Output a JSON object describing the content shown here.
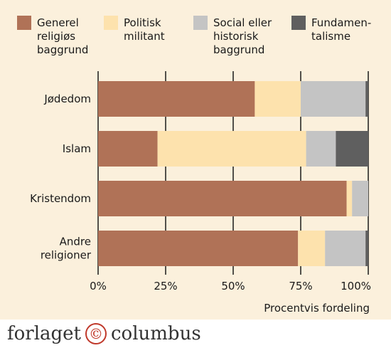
{
  "colors": {
    "panel_background": "#fbf0dc",
    "grid": "#1a1a1a",
    "series": [
      "#b07257",
      "#fde2ad",
      "#c4c4c4",
      "#5f5f5f"
    ]
  },
  "publisher": {
    "name_part1": "forlaget",
    "symbol": "©",
    "name_part2": "columbus"
  },
  "chart_data": {
    "type": "bar",
    "orientation": "horizontal",
    "stacked": true,
    "categories": [
      [
        "Jødedom"
      ],
      [
        "Islam"
      ],
      [
        "Kristendom"
      ],
      [
        "Andre",
        "religioner"
      ]
    ],
    "series": [
      {
        "name": [
          "Generel",
          "religiøs",
          "baggrund"
        ],
        "values": [
          58,
          22,
          92,
          74
        ]
      },
      {
        "name": [
          "Politisk",
          "militant"
        ],
        "values": [
          17,
          55,
          2,
          10
        ]
      },
      {
        "name": [
          "Social eller",
          "historisk",
          "baggrund"
        ],
        "values": [
          24,
          11,
          6,
          15
        ]
      },
      {
        "name": [
          "Fundamen-",
          "talisme"
        ],
        "values": [
          1,
          12,
          0,
          1
        ]
      }
    ],
    "xlim": [
      0,
      100
    ],
    "xticks": [
      0,
      25,
      50,
      75,
      100
    ],
    "xtick_labels": [
      "0%",
      "25%",
      "50%",
      "75%",
      "100%"
    ],
    "xlabel": "Procentvis fordeling",
    "grid": true,
    "legend_position": "top"
  }
}
